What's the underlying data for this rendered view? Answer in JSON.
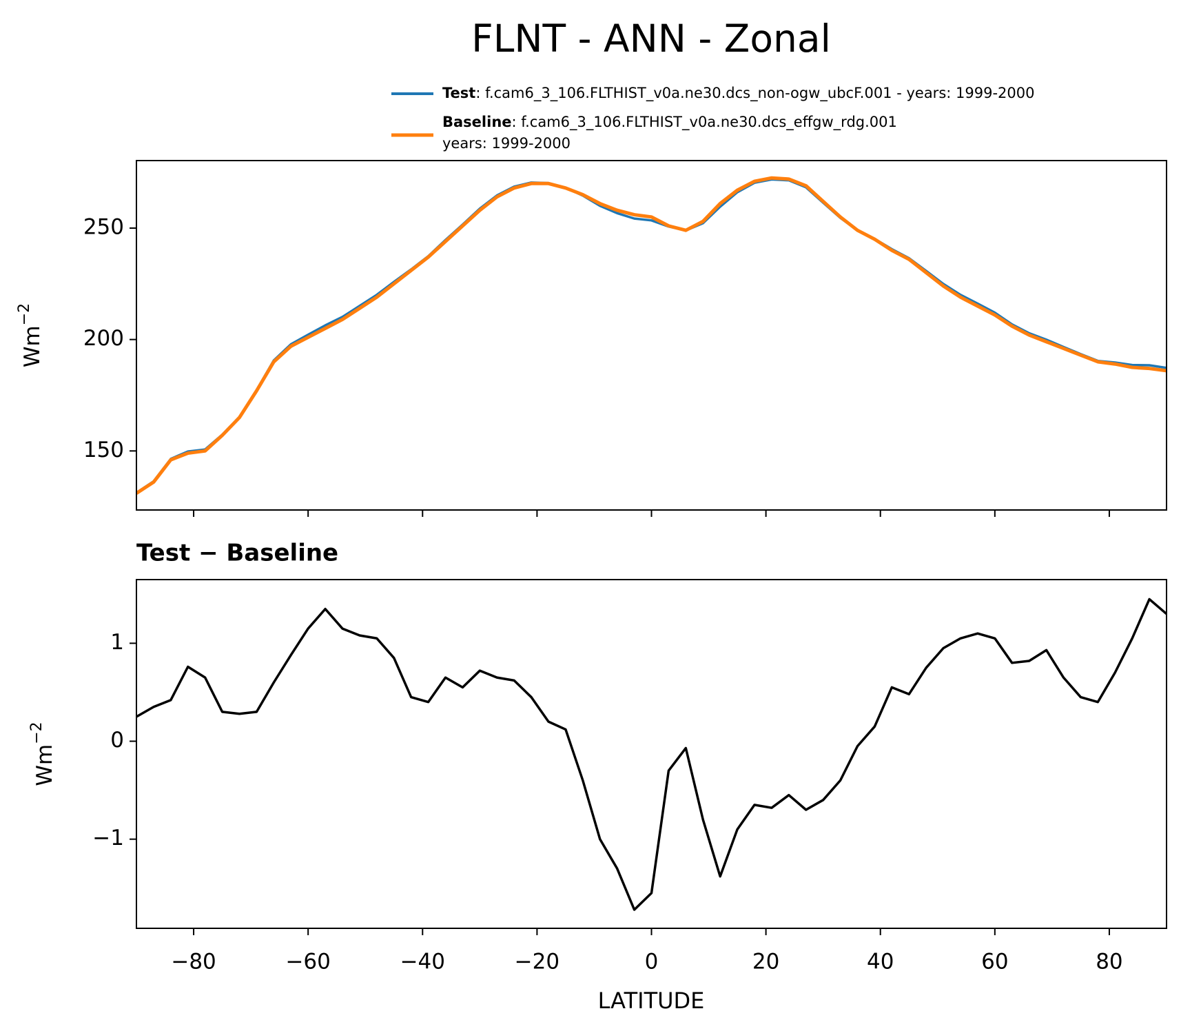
{
  "chart_data": [
    {
      "type": "line",
      "title": "FLNT - ANN - Zonal",
      "ylabel": "Wm",
      "ylabel_sup": "−2",
      "xlim": [
        -90,
        90
      ],
      "xticks": [
        -80,
        -60,
        -40,
        -20,
        0,
        20,
        40,
        60,
        80
      ],
      "ylim": [
        123.5,
        280.3
      ],
      "yticks": [
        150,
        200,
        250
      ],
      "x": [
        -90,
        -87,
        -84,
        -81,
        -78,
        -75,
        -72,
        -69,
        -66,
        -63,
        -60,
        -57,
        -54,
        -51,
        -48,
        -45,
        -42,
        -39,
        -36,
        -33,
        -30,
        -27,
        -24,
        -21,
        -18,
        -15,
        -12,
        -9,
        -6,
        -3,
        0,
        3,
        6,
        9,
        12,
        15,
        18,
        21,
        24,
        27,
        30,
        33,
        36,
        39,
        42,
        45,
        48,
        51,
        54,
        57,
        60,
        63,
        66,
        69,
        72,
        75,
        78,
        81,
        84,
        87,
        90
      ],
      "series": [
        {
          "name": "Test",
          "description": [
            ": f.cam6_3_106.FLTHIST_v0a.ne30.dcs_non-ogw_ubcF.001 - years: 1999-2000"
          ],
          "color": "#1f77b4",
          "values": [
            131.25,
            136.35,
            146.42,
            149.76,
            150.65,
            157.3,
            165.28,
            177.3,
            190.6,
            197.88,
            202.15,
            206.35,
            210.15,
            215.08,
            220.05,
            225.85,
            231.45,
            237.4,
            244.65,
            251.55,
            258.72,
            264.65,
            268.62,
            270.45,
            270.2,
            268.12,
            264.6,
            260,
            256.7,
            254.28,
            253.45,
            250.7,
            248.93,
            252.2,
            259.62,
            266.1,
            270.35,
            271.82,
            271.45,
            268.3,
            261.4,
            254.6,
            248.95,
            245.15,
            240.55,
            236.48,
            230.75,
            224.95,
            220.05,
            216.1,
            212.05,
            206.8,
            202.82,
            199.93,
            196.65,
            193.45,
            190.4,
            189.7,
            188.55,
            188.45,
            187.3
          ]
        },
        {
          "name": "Baseline",
          "description": [
            ": f.cam6_3_106.FLTHIST_v0a.ne30.dcs_effgw_rdg.001",
            "years: 1999-2000"
          ],
          "color": "#ff7f0e",
          "values": [
            131,
            136,
            146,
            149,
            150,
            157,
            165,
            177,
            190,
            197,
            201,
            205,
            209,
            214,
            219,
            225,
            231,
            237,
            244,
            251,
            258,
            264,
            268,
            270,
            270,
            268,
            265,
            261,
            258,
            256,
            255,
            251,
            249,
            253,
            261,
            267,
            271,
            272.5,
            272,
            269,
            262,
            255,
            249,
            245,
            240,
            236,
            230,
            224,
            219,
            215,
            211,
            206,
            202,
            199,
            196,
            193,
            190,
            189,
            187.5,
            187,
            186
          ]
        }
      ]
    },
    {
      "type": "line",
      "subtitle": "Test − Baseline",
      "xlabel": "LATITUDE",
      "ylabel": "Wm",
      "ylabel_sup": "−2",
      "xlim": [
        -90,
        90
      ],
      "xticks": [
        {
          "value": -80,
          "label": "−80"
        },
        {
          "value": -60,
          "label": "−60"
        },
        {
          "value": -40,
          "label": "−40"
        },
        {
          "value": -20,
          "label": "−20"
        },
        0,
        20,
        40,
        60,
        80
      ],
      "ylim": [
        -1.91,
        1.65
      ],
      "yticks": [
        {
          "value": -1,
          "label": "−1"
        },
        0,
        1
      ],
      "x": [
        -90,
        -87,
        -84,
        -81,
        -78,
        -75,
        -72,
        -69,
        -66,
        -63,
        -60,
        -57,
        -54,
        -51,
        -48,
        -45,
        -42,
        -39,
        -36,
        -33,
        -30,
        -27,
        -24,
        -21,
        -18,
        -15,
        -12,
        -9,
        -6,
        -3,
        0,
        3,
        6,
        9,
        12,
        15,
        18,
        21,
        24,
        27,
        30,
        33,
        36,
        39,
        42,
        45,
        48,
        51,
        54,
        57,
        60,
        63,
        66,
        69,
        72,
        75,
        78,
        81,
        84,
        87,
        90
      ],
      "series": [
        {
          "color": "#000000",
          "values": [
            0.25,
            0.35,
            0.42,
            0.76,
            0.65,
            0.3,
            0.28,
            0.3,
            0.6,
            0.88,
            1.15,
            1.35,
            1.15,
            1.08,
            1.05,
            0.85,
            0.45,
            0.4,
            0.65,
            0.55,
            0.72,
            0.65,
            0.62,
            0.45,
            0.2,
            0.12,
            -0.4,
            -1.0,
            -1.3,
            -1.72,
            -1.55,
            -0.3,
            -0.07,
            -0.8,
            -1.38,
            -0.9,
            -0.65,
            -0.68,
            -0.55,
            -0.7,
            -0.6,
            -0.4,
            -0.05,
            0.15,
            0.55,
            0.48,
            0.75,
            0.95,
            1.05,
            1.1,
            1.05,
            0.8,
            0.82,
            0.93,
            0.65,
            0.45,
            0.4,
            0.7,
            1.05,
            1.45,
            1.3
          ]
        }
      ]
    }
  ]
}
